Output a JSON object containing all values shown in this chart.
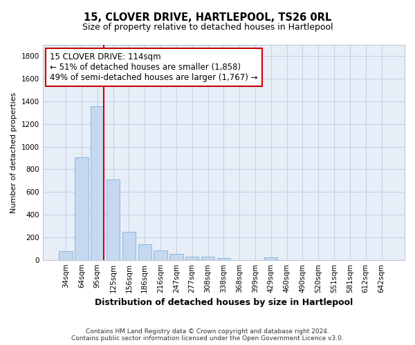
{
  "title": "15, CLOVER DRIVE, HARTLEPOOL, TS26 0RL",
  "subtitle": "Size of property relative to detached houses in Hartlepool",
  "xlabel": "Distribution of detached houses by size in Hartlepool",
  "ylabel": "Number of detached properties",
  "categories": [
    "34sqm",
    "64sqm",
    "95sqm",
    "125sqm",
    "156sqm",
    "186sqm",
    "216sqm",
    "247sqm",
    "277sqm",
    "308sqm",
    "338sqm",
    "368sqm",
    "399sqm",
    "429sqm",
    "460sqm",
    "490sqm",
    "520sqm",
    "551sqm",
    "581sqm",
    "612sqm",
    "642sqm"
  ],
  "values": [
    80,
    905,
    1360,
    710,
    245,
    140,
    85,
    50,
    30,
    30,
    18,
    0,
    0,
    20,
    0,
    0,
    0,
    0,
    0,
    0,
    0
  ],
  "bar_color": "#c5d8f0",
  "bar_edge_color": "#7eb0d8",
  "vline_color": "#cc0000",
  "vline_x": 2.42,
  "annotation_line1": "15 CLOVER DRIVE: 114sqm",
  "annotation_line2": "← 51% of detached houses are smaller (1,858)",
  "annotation_line3": "49% of semi-detached houses are larger (1,767) →",
  "annotation_box_facecolor": "#ffffff",
  "annotation_box_edgecolor": "#cc0000",
  "ylim": [
    0,
    1900
  ],
  "yticks": [
    0,
    200,
    400,
    600,
    800,
    1000,
    1200,
    1400,
    1600,
    1800
  ],
  "grid_color": "#c8cfe0",
  "bg_color": "#e8eef8",
  "footer_text": "Contains HM Land Registry data © Crown copyright and database right 2024.\nContains public sector information licensed under the Open Government Licence v3.0.",
  "title_fontsize": 10.5,
  "subtitle_fontsize": 9,
  "xlabel_fontsize": 9,
  "ylabel_fontsize": 8,
  "tick_fontsize": 7.5,
  "annotation_fontsize": 8.5,
  "footer_fontsize": 6.5
}
